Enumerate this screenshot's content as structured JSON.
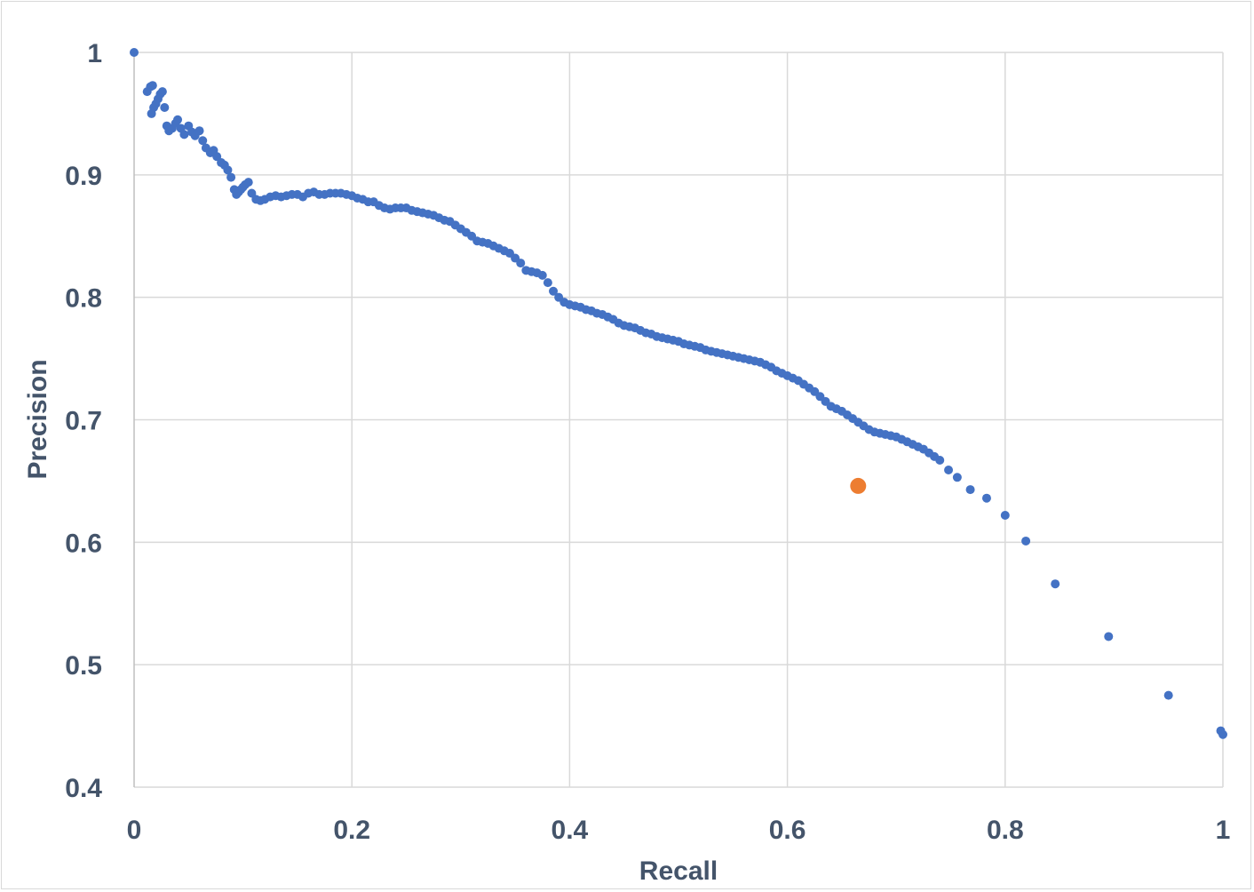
{
  "chart_data": {
    "type": "scatter",
    "title": "",
    "xlabel": "Recall",
    "ylabel": "Precision",
    "xlim": [
      0,
      1
    ],
    "ylim": [
      0.4,
      1
    ],
    "x_ticks": [
      "0",
      "0.2",
      "0.4",
      "0.6",
      "0.8",
      "1"
    ],
    "y_ticks": [
      "0.4",
      "0.5",
      "0.6",
      "0.7",
      "0.8",
      "0.9",
      "1"
    ],
    "grid": true,
    "legend": "none",
    "colors": {
      "series": "#4472C4",
      "highlight": "#ED7D31",
      "grid": "#d9d9d9",
      "text": "#44546A"
    },
    "series": [
      {
        "color": "#4472C4",
        "x": [
          0.0,
          0.012,
          0.015,
          0.017,
          0.016,
          0.018,
          0.02,
          0.022,
          0.024,
          0.026,
          0.028,
          0.03,
          0.032,
          0.035,
          0.038,
          0.04,
          0.043,
          0.046,
          0.05,
          0.053,
          0.056,
          0.06,
          0.063,
          0.066,
          0.07,
          0.073,
          0.076,
          0.08,
          0.083,
          0.086,
          0.089,
          0.092,
          0.094,
          0.096,
          0.098,
          0.1,
          0.102,
          0.105,
          0.108,
          0.112,
          0.116,
          0.12,
          0.125,
          0.13,
          0.135,
          0.14,
          0.145,
          0.15,
          0.155,
          0.16,
          0.165,
          0.17,
          0.175,
          0.18,
          0.185,
          0.19,
          0.195,
          0.2,
          0.205,
          0.21,
          0.215,
          0.22,
          0.225,
          0.23,
          0.235,
          0.24,
          0.245,
          0.25,
          0.255,
          0.26,
          0.265,
          0.27,
          0.275,
          0.28,
          0.285,
          0.29,
          0.295,
          0.3,
          0.305,
          0.31,
          0.315,
          0.32,
          0.325,
          0.33,
          0.335,
          0.34,
          0.345,
          0.35,
          0.355,
          0.36,
          0.365,
          0.37,
          0.375,
          0.38,
          0.385,
          0.39,
          0.395,
          0.4,
          0.405,
          0.41,
          0.415,
          0.42,
          0.425,
          0.43,
          0.435,
          0.44,
          0.445,
          0.45,
          0.455,
          0.46,
          0.465,
          0.47,
          0.475,
          0.48,
          0.485,
          0.49,
          0.495,
          0.5,
          0.505,
          0.51,
          0.515,
          0.52,
          0.525,
          0.53,
          0.535,
          0.54,
          0.545,
          0.55,
          0.555,
          0.56,
          0.565,
          0.57,
          0.575,
          0.58,
          0.585,
          0.59,
          0.595,
          0.6,
          0.605,
          0.61,
          0.615,
          0.62,
          0.625,
          0.63,
          0.635,
          0.64,
          0.645,
          0.65,
          0.655,
          0.66,
          0.665,
          0.67,
          0.675,
          0.68,
          0.685,
          0.69,
          0.695,
          0.7,
          0.705,
          0.71,
          0.715,
          0.72,
          0.725,
          0.73,
          0.735,
          0.74,
          0.748,
          0.756,
          0.768,
          0.783,
          0.8,
          0.819,
          0.846,
          0.895,
          0.95,
          0.998,
          1.0
        ],
        "y": [
          1.0,
          0.968,
          0.972,
          0.973,
          0.95,
          0.955,
          0.958,
          0.962,
          0.966,
          0.968,
          0.955,
          0.94,
          0.936,
          0.938,
          0.942,
          0.945,
          0.938,
          0.933,
          0.94,
          0.935,
          0.932,
          0.936,
          0.928,
          0.922,
          0.918,
          0.92,
          0.915,
          0.91,
          0.908,
          0.904,
          0.898,
          0.888,
          0.884,
          0.886,
          0.888,
          0.89,
          0.892,
          0.894,
          0.885,
          0.88,
          0.879,
          0.88,
          0.882,
          0.883,
          0.882,
          0.883,
          0.884,
          0.884,
          0.882,
          0.885,
          0.886,
          0.884,
          0.884,
          0.885,
          0.885,
          0.885,
          0.884,
          0.883,
          0.881,
          0.88,
          0.878,
          0.878,
          0.875,
          0.873,
          0.872,
          0.873,
          0.873,
          0.873,
          0.871,
          0.87,
          0.869,
          0.868,
          0.867,
          0.865,
          0.863,
          0.862,
          0.859,
          0.856,
          0.853,
          0.85,
          0.846,
          0.845,
          0.844,
          0.842,
          0.84,
          0.838,
          0.836,
          0.832,
          0.828,
          0.822,
          0.821,
          0.82,
          0.818,
          0.812,
          0.805,
          0.8,
          0.796,
          0.794,
          0.793,
          0.792,
          0.79,
          0.789,
          0.787,
          0.786,
          0.784,
          0.782,
          0.779,
          0.777,
          0.776,
          0.775,
          0.773,
          0.771,
          0.77,
          0.768,
          0.767,
          0.766,
          0.765,
          0.764,
          0.762,
          0.761,
          0.76,
          0.759,
          0.757,
          0.756,
          0.755,
          0.754,
          0.753,
          0.752,
          0.751,
          0.75,
          0.749,
          0.748,
          0.747,
          0.745,
          0.743,
          0.74,
          0.738,
          0.736,
          0.734,
          0.732,
          0.729,
          0.726,
          0.723,
          0.719,
          0.715,
          0.711,
          0.709,
          0.707,
          0.704,
          0.701,
          0.698,
          0.695,
          0.692,
          0.69,
          0.689,
          0.688,
          0.687,
          0.686,
          0.684,
          0.682,
          0.68,
          0.678,
          0.676,
          0.673,
          0.67,
          0.667,
          0.659,
          0.653,
          0.643,
          0.636,
          0.622,
          0.601,
          0.566,
          0.523,
          0.475,
          0.446,
          0.443
        ]
      }
    ],
    "highlight_point": {
      "color": "#ED7D31",
      "x": 0.665,
      "y": 0.646
    }
  }
}
